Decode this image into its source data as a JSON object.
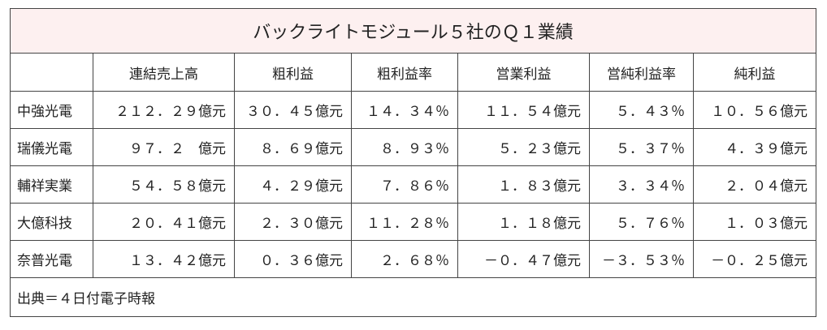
{
  "title": "バックライトモジュール５社のＱ１業績",
  "table": {
    "columns": [
      "連結売上高",
      "粗利益",
      "粗利益率",
      "営業利益",
      "営純利益率",
      "純利益"
    ],
    "rows": [
      {
        "name": "中強光電",
        "cells": [
          "２１２．２９億元",
          "３０．４５億元",
          "１４．３４％",
          "１１．５４億元",
          "５．４３％",
          "１０．５６億元"
        ]
      },
      {
        "name": "瑞儀光電",
        "cells": [
          "９７．２　億元",
          "８．６９億元",
          "８．９３％",
          "５．２３億元",
          "５．３７％",
          "４．３９億元"
        ]
      },
      {
        "name": "輔祥実業",
        "cells": [
          "５４．５８億元",
          "４．２９億元",
          "７．８６％",
          "１．８３億元",
          "３．３４％",
          "２．０４億元"
        ]
      },
      {
        "name": "大億科技",
        "cells": [
          "２０．４１億元",
          "２．３０億元",
          "１１．２８％",
          "１．１８億元",
          "５．７６％",
          "１．０３億元"
        ]
      },
      {
        "name": "奈普光電",
        "cells": [
          "１３．４２億元",
          "０．３６億元",
          "２．６８％",
          "－０．４７億元",
          "－３．５３％",
          "－０．２５億元"
        ]
      }
    ]
  },
  "source": "出典＝４日付電子時報"
}
